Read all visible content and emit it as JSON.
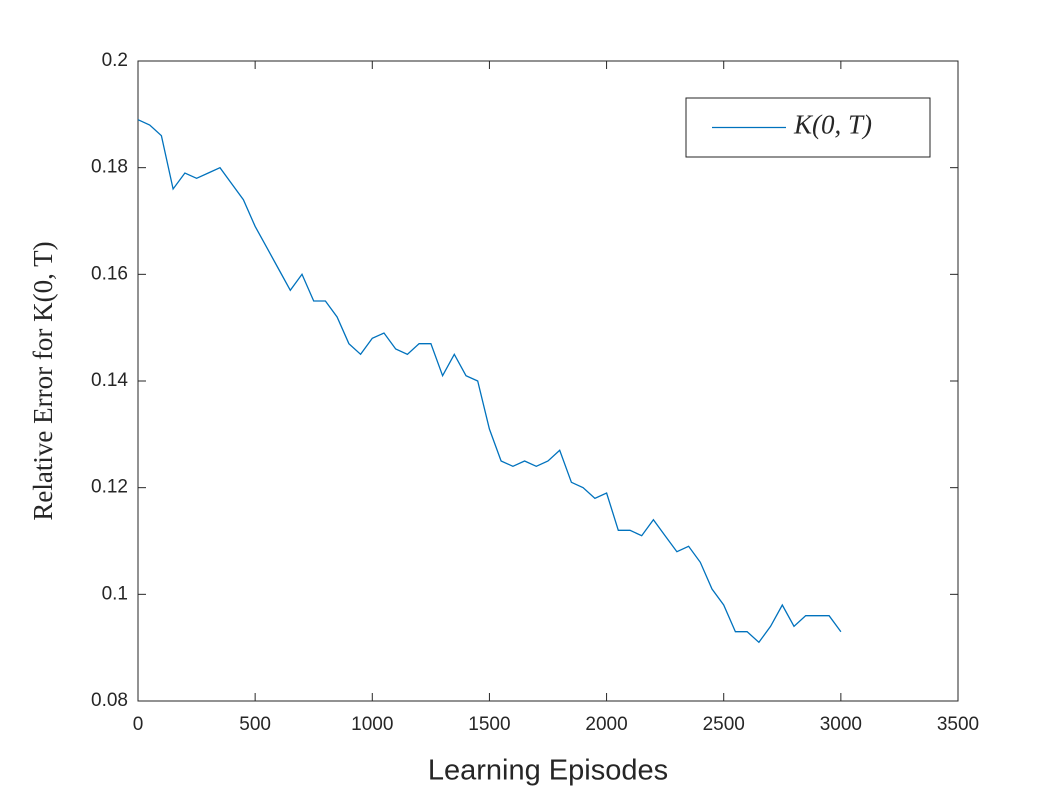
{
  "chart_data": {
    "type": "line",
    "xlabel": "Learning Episodes",
    "ylabel": "Relative Error for K(0, T)",
    "x": [
      0,
      50,
      100,
      150,
      200,
      250,
      300,
      350,
      400,
      450,
      500,
      550,
      600,
      650,
      700,
      750,
      800,
      850,
      900,
      950,
      1000,
      1050,
      1100,
      1150,
      1200,
      1250,
      1300,
      1350,
      1400,
      1450,
      1500,
      1550,
      1600,
      1650,
      1700,
      1750,
      1800,
      1850,
      1900,
      1950,
      2000,
      2050,
      2100,
      2150,
      2200,
      2250,
      2300,
      2350,
      2400,
      2450,
      2500,
      2550,
      2600,
      2650,
      2700,
      2750,
      2800,
      2850,
      2900,
      2950,
      3000
    ],
    "series": [
      {
        "name": "K(0, T)",
        "color": "#0072bd",
        "values": [
          0.189,
          0.188,
          0.186,
          0.176,
          0.179,
          0.178,
          0.179,
          0.18,
          0.177,
          0.174,
          0.169,
          0.165,
          0.161,
          0.157,
          0.16,
          0.155,
          0.155,
          0.152,
          0.147,
          0.145,
          0.148,
          0.149,
          0.146,
          0.145,
          0.147,
          0.147,
          0.141,
          0.145,
          0.141,
          0.14,
          0.131,
          0.125,
          0.124,
          0.125,
          0.124,
          0.125,
          0.127,
          0.121,
          0.12,
          0.118,
          0.119,
          0.112,
          0.112,
          0.111,
          0.114,
          0.111,
          0.108,
          0.109,
          0.106,
          0.101,
          0.098,
          0.093,
          0.093,
          0.091,
          0.094,
          0.098,
          0.094,
          0.096,
          0.096,
          0.096,
          0.093
        ]
      }
    ],
    "xlim": [
      0,
      3500
    ],
    "xticks": [
      0,
      500,
      1000,
      1500,
      2000,
      2500,
      3000,
      3500
    ],
    "ylim": [
      0.08,
      0.2
    ],
    "yticks": [
      0.08,
      0.1,
      0.12,
      0.14,
      0.16,
      0.18,
      0.2
    ],
    "legend": "upper right"
  }
}
